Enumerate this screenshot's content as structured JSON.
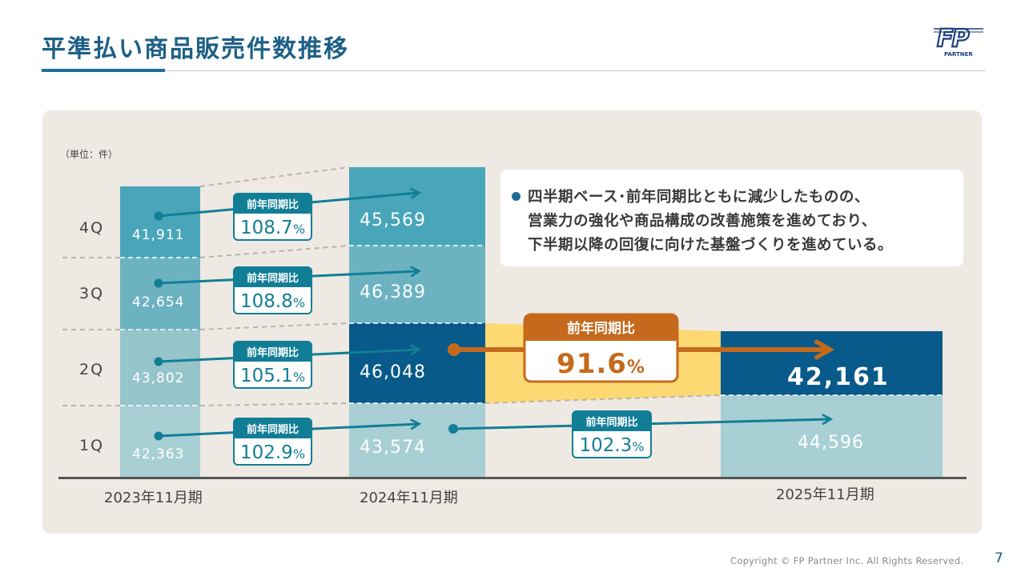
{
  "page": {
    "title": "平準払い商品販売件数推移",
    "footer": "Copyright © FP Partner Inc. All Rights Reserved.",
    "page_number": "7",
    "logo": {
      "mark": "FP",
      "text": "PARTNER"
    }
  },
  "note": {
    "lines": [
      "四半期ベース･前年同期比ともに減少したものの、",
      "営業力の強化や商品構成の改善施策を進めており、",
      "下半期以降の回復に向けた基盤づくりを進めている。"
    ]
  },
  "colors": {
    "q1_light": "#a8cfd4",
    "q2_light": "#96c4cb",
    "q3_light": "#6cb2c1",
    "q4_light": "#48a5ba",
    "q2_dark": "#075a89",
    "arrow_teal": "#127e96",
    "arrow_orange": "#c56a1c",
    "highlight_yellow": "#fdd873",
    "panel_bg": "#eee9e3"
  },
  "chart_data": {
    "type": "bar",
    "unit_label": "（単位：件）",
    "categories": [
      "2023年11月期",
      "2024年11月期",
      "2025年11月期"
    ],
    "series": [
      {
        "name": "1Q",
        "values": [
          42363,
          43574,
          44596
        ]
      },
      {
        "name": "2Q",
        "values": [
          43802,
          46048,
          42161
        ]
      },
      {
        "name": "3Q",
        "values": [
          42654,
          46389,
          null
        ]
      },
      {
        "name": "4Q",
        "values": [
          41911,
          45569,
          null
        ]
      }
    ],
    "value_labels": [
      [
        "42,363",
        "43,574",
        "44,596"
      ],
      [
        "43,802",
        "46,048",
        "42,161"
      ],
      [
        "42,654",
        "46,389",
        ""
      ],
      [
        "41,911",
        "45,569",
        ""
      ]
    ],
    "yoy": {
      "badge_label": "前年同期比",
      "fy2024": [
        {
          "quarter": "1Q",
          "value": "102.9",
          "unit": "%"
        },
        {
          "quarter": "2Q",
          "value": "105.1",
          "unit": "%"
        },
        {
          "quarter": "3Q",
          "value": "108.8",
          "unit": "%"
        },
        {
          "quarter": "4Q",
          "value": "108.7",
          "unit": "%"
        }
      ],
      "fy2025": [
        {
          "quarter": "1Q",
          "value": "102.3",
          "unit": "%"
        },
        {
          "quarter": "2Q",
          "value": "91.6",
          "unit": "%"
        }
      ]
    }
  }
}
